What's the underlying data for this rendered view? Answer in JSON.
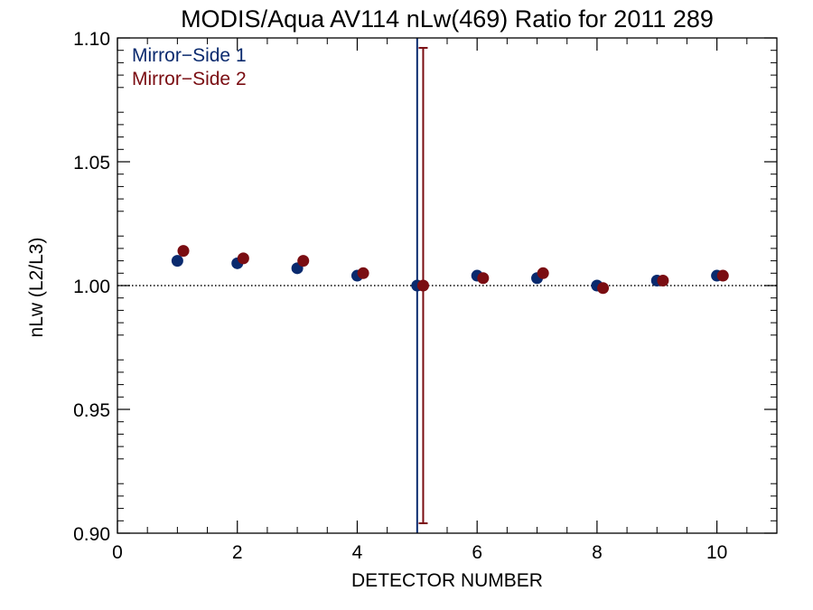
{
  "chart_data": {
    "type": "scatter",
    "title": "MODIS/Aqua AV114 nLw(469) Ratio for 2011 289",
    "xlabel": "DETECTOR NUMBER",
    "ylabel": "nLw (L2/L3)",
    "xlim": [
      0,
      11
    ],
    "ylim": [
      0.9,
      1.1
    ],
    "x_ticks": [
      0,
      2,
      4,
      6,
      8,
      10
    ],
    "x_tick_labels": [
      "0",
      "2",
      "4",
      "6",
      "8",
      "10"
    ],
    "y_ticks": [
      0.9,
      0.95,
      1.0,
      1.05,
      1.1
    ],
    "y_tick_labels": [
      "0.90",
      "0.95",
      "1.00",
      "1.05",
      "1.10"
    ],
    "reference_line": {
      "y": 1.0,
      "style": "dotted",
      "color": "#000000"
    },
    "vertical_line": {
      "x": 5,
      "color": "#0a2a6e"
    },
    "legend_position": "top-left",
    "grid": false,
    "series": [
      {
        "name": "Mirror−Side 1",
        "color": "#0a2a6e",
        "x": [
          1,
          2,
          3,
          4,
          5,
          6,
          7,
          8,
          9,
          10
        ],
        "y": [
          1.01,
          1.009,
          1.007,
          1.004,
          1.0,
          1.004,
          1.003,
          1.0,
          1.002,
          1.004
        ]
      },
      {
        "name": "Mirror−Side 2",
        "color": "#7a0d12",
        "x": [
          1.1,
          2.1,
          3.1,
          4.1,
          5.1,
          6.1,
          7.1,
          8.1,
          9.1,
          10.1
        ],
        "y": [
          1.014,
          1.011,
          1.01,
          1.005,
          1.0,
          1.003,
          1.005,
          0.999,
          1.002,
          1.004
        ],
        "error_bar": {
          "x": 5.1,
          "low": 0.904,
          "high": 1.096
        }
      }
    ]
  }
}
